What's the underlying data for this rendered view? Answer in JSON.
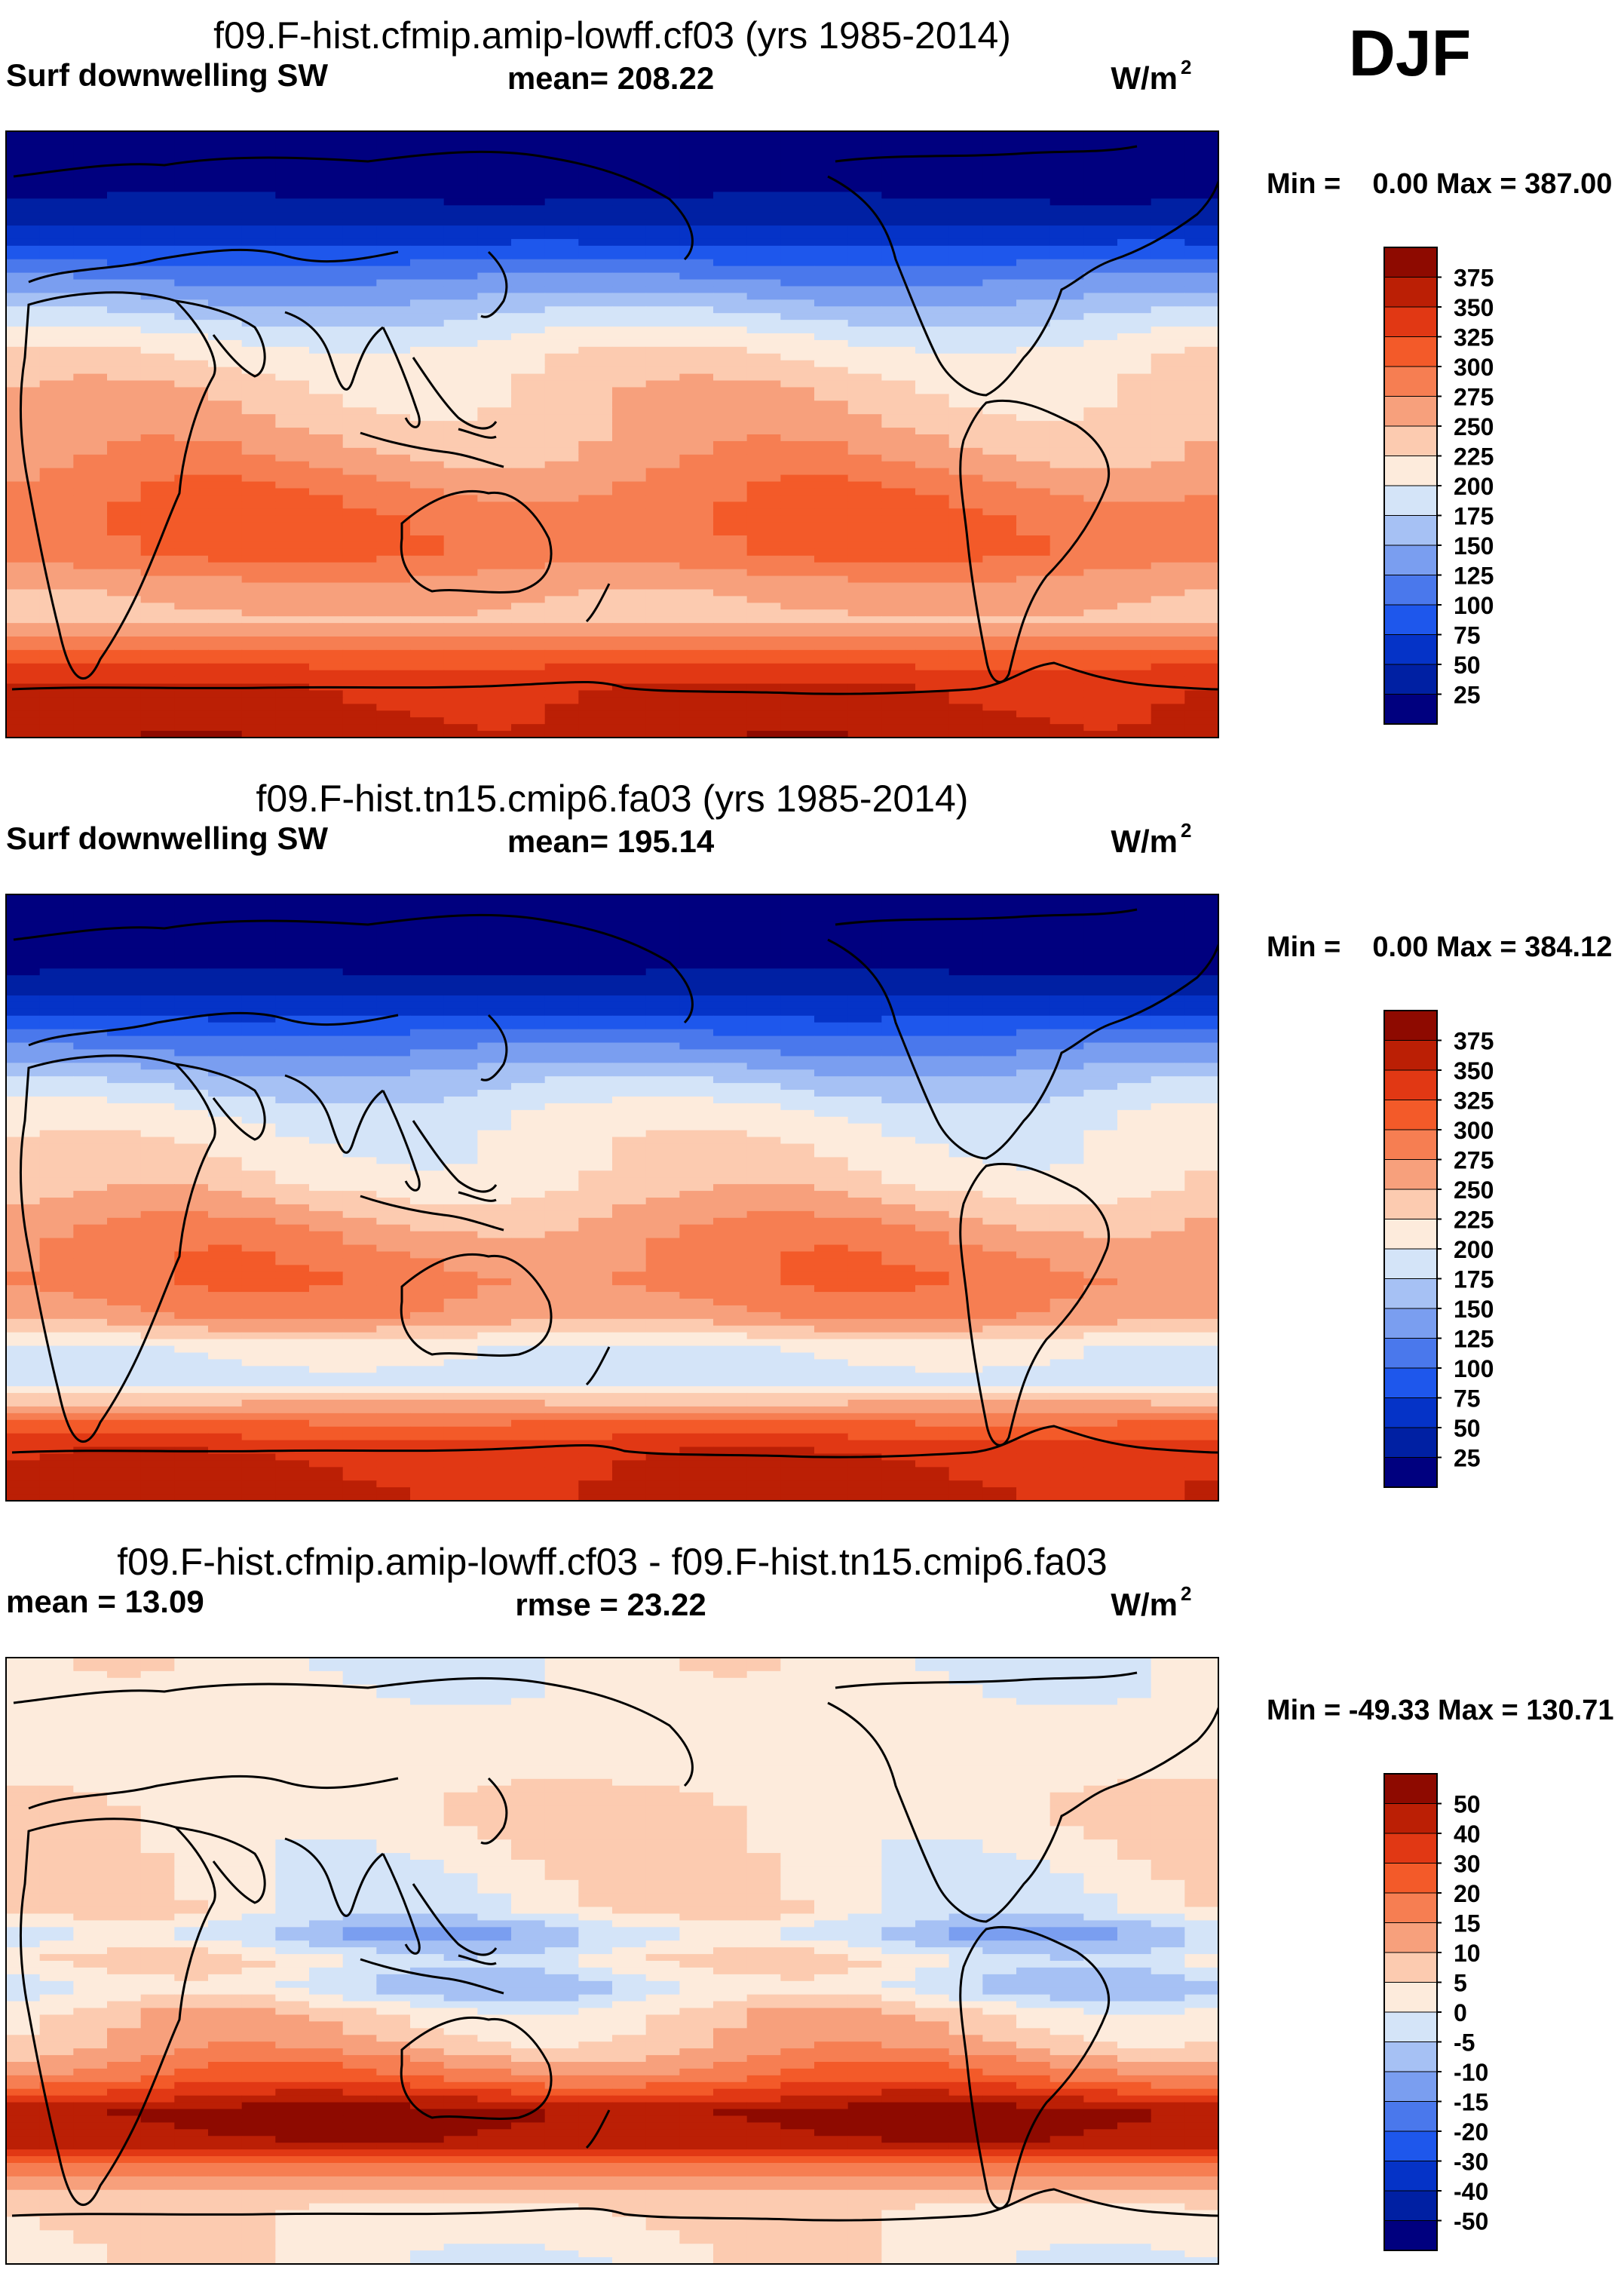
{
  "season": "DJF",
  "colors": {
    "abs_levels": [
      "#00007f",
      "#0020a3",
      "#0533c7",
      "#1e57ec",
      "#4a78ec",
      "#7a9ef0",
      "#a6c1f4",
      "#d4e4f8",
      "#fdebdc",
      "#fccbb0",
      "#f7a07c",
      "#f67e52",
      "#f35a29",
      "#e13814",
      "#bb1f05",
      "#8e0a00"
    ],
    "diff_levels": [
      "#00007f",
      "#0020a3",
      "#0533c7",
      "#1e57ec",
      "#4a78ec",
      "#7a9ef0",
      "#a6c1f4",
      "#d4e4f8",
      "#fdebdc",
      "#fccbb0",
      "#f7a07c",
      "#f67e52",
      "#f35a29",
      "#e13814",
      "#bb1f05",
      "#8e0a00"
    ],
    "coast": "#000000"
  },
  "chart_data": [
    {
      "type": "heatmap",
      "title": "f09.F-hist.cfmip.amip-lowff.cf03 (yrs 1985-2014)",
      "variable": "Surf downwelling SW",
      "mean_label": "mean= 208.22",
      "units_base": "W/m",
      "units_exp": "2",
      "minmax": "Min =    0.00 Max = 387.00",
      "levels": [
        "375",
        "350",
        "325",
        "300",
        "275",
        "250",
        "225",
        "200",
        "175",
        "150",
        "125",
        "100",
        "75",
        "50",
        "25"
      ],
      "colorbar_min": 0,
      "colorbar_max": 400,
      "x": [
        0,
        30,
        60,
        90,
        120,
        150,
        180,
        210,
        240,
        270,
        300,
        330,
        360
      ],
      "y_range": [
        -90,
        90
      ],
      "bands": [
        {
          "lat": 90,
          "v": 0
        },
        {
          "lat": 75,
          "v": 10
        },
        {
          "lat": 65,
          "v": 40
        },
        {
          "lat": 55,
          "v": 80
        },
        {
          "lat": 45,
          "v": 130
        },
        {
          "lat": 35,
          "v": 175
        },
        {
          "lat": 25,
          "v": 215
        },
        {
          "lat": 15,
          "v": 235
        },
        {
          "lat": 5,
          "v": 245
        },
        {
          "lat": -5,
          "v": 260
        },
        {
          "lat": -15,
          "v": 285
        },
        {
          "lat": -25,
          "v": 300
        },
        {
          "lat": -35,
          "v": 300
        },
        {
          "lat": -45,
          "v": 260
        },
        {
          "lat": -55,
          "v": 245
        },
        {
          "lat": -65,
          "v": 310
        },
        {
          "lat": -75,
          "v": 350
        },
        {
          "lat": -90,
          "v": 365
        }
      ]
    },
    {
      "type": "heatmap",
      "title": "f09.F-hist.tn15.cmip6.fa03 (yrs 1985-2014)",
      "variable": "Surf downwelling SW",
      "mean_label": "mean= 195.14",
      "units_base": "W/m",
      "units_exp": "2",
      "minmax": "Min =    0.00 Max = 384.12",
      "levels": [
        "375",
        "350",
        "325",
        "300",
        "275",
        "250",
        "225",
        "200",
        "175",
        "150",
        "125",
        "100",
        "75",
        "50",
        "25"
      ],
      "colorbar_min": 0,
      "colorbar_max": 400,
      "x": [
        0,
        30,
        60,
        90,
        120,
        150,
        180,
        210,
        240,
        270,
        300,
        330,
        360
      ],
      "y_range": [
        -90,
        90
      ],
      "bands": [
        {
          "lat": 90,
          "v": 0
        },
        {
          "lat": 75,
          "v": 5
        },
        {
          "lat": 65,
          "v": 30
        },
        {
          "lat": 55,
          "v": 70
        },
        {
          "lat": 45,
          "v": 120
        },
        {
          "lat": 35,
          "v": 165
        },
        {
          "lat": 25,
          "v": 200
        },
        {
          "lat": 15,
          "v": 215
        },
        {
          "lat": 5,
          "v": 225
        },
        {
          "lat": -5,
          "v": 255
        },
        {
          "lat": -15,
          "v": 280
        },
        {
          "lat": -25,
          "v": 290
        },
        {
          "lat": -35,
          "v": 270
        },
        {
          "lat": -45,
          "v": 200
        },
        {
          "lat": -55,
          "v": 190
        },
        {
          "lat": -65,
          "v": 290
        },
        {
          "lat": -75,
          "v": 345
        },
        {
          "lat": -90,
          "v": 360
        }
      ]
    },
    {
      "type": "heatmap",
      "title": "f09.F-hist.cfmip.amip-lowff.cf03 - f09.F-hist.tn15.cmip6.fa03",
      "variable": "mean =  13.09",
      "mean_label": "rmse =  23.22",
      "units_base": "W/m",
      "units_exp": "2",
      "minmax": "Min = -49.33 Max = 130.71",
      "levels": [
        "50",
        "40",
        "30",
        "20",
        "15",
        "10",
        "5",
        "0",
        "-5",
        "-10",
        "-15",
        "-20",
        "-30",
        "-40",
        "-50"
      ],
      "colorbar_min": -60,
      "colorbar_max": 60,
      "x": [
        0,
        30,
        60,
        90,
        120,
        150,
        180,
        210,
        240,
        270,
        300,
        330,
        360
      ],
      "y_range": [
        -90,
        90
      ],
      "bands": [
        {
          "lat": 90,
          "v": 2
        },
        {
          "lat": 75,
          "v": 3
        },
        {
          "lat": 60,
          "v": 3
        },
        {
          "lat": 45,
          "v": 8
        },
        {
          "lat": 30,
          "v": 5
        },
        {
          "lat": 15,
          "v": 3
        },
        {
          "lat": 8,
          "v": -10
        },
        {
          "lat": 0,
          "v": 4
        },
        {
          "lat": -8,
          "v": -6
        },
        {
          "lat": -15,
          "v": 8
        },
        {
          "lat": -25,
          "v": 15
        },
        {
          "lat": -35,
          "v": 30
        },
        {
          "lat": -45,
          "v": 55
        },
        {
          "lat": -55,
          "v": 50
        },
        {
          "lat": -62,
          "v": 25
        },
        {
          "lat": -72,
          "v": 8
        },
        {
          "lat": -90,
          "v": 3
        }
      ]
    }
  ]
}
